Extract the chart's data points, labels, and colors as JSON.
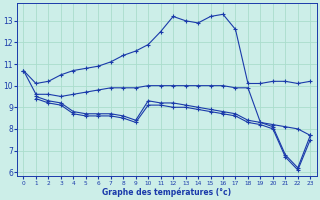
{
  "background_color": "#cceee8",
  "grid_color": "#aaddcc",
  "line_color": "#1a3aaa",
  "xlabel": "Graphe des températures (°c)",
  "xlim": [
    -0.5,
    23.5
  ],
  "ylim": [
    5.8,
    13.8
  ],
  "yticks": [
    6,
    7,
    8,
    9,
    10,
    11,
    12,
    13
  ],
  "xticks": [
    0,
    1,
    2,
    3,
    4,
    5,
    6,
    7,
    8,
    9,
    10,
    11,
    12,
    13,
    14,
    15,
    16,
    17,
    18,
    19,
    20,
    21,
    22,
    23
  ],
  "series": [
    {
      "x": [
        0,
        1,
        2,
        3,
        4,
        5,
        6,
        7,
        8,
        9,
        10,
        11,
        12,
        13,
        14,
        15,
        16,
        17,
        18,
        19,
        20,
        21,
        22,
        23
      ],
      "y": [
        10.7,
        10.1,
        10.2,
        10.5,
        10.7,
        10.8,
        10.9,
        11.1,
        11.4,
        11.6,
        11.9,
        12.5,
        13.2,
        13.0,
        12.9,
        13.2,
        13.3,
        12.6,
        10.1,
        10.1,
        10.2,
        10.2,
        10.1,
        10.2
      ]
    },
    {
      "x": [
        0,
        1,
        2,
        3,
        4,
        5,
        6,
        7,
        8,
        9,
        10,
        11,
        12,
        13,
        14,
        15,
        16,
        17,
        18,
        19,
        20,
        21,
        22,
        23
      ],
      "y": [
        10.7,
        9.6,
        9.6,
        9.5,
        9.6,
        9.7,
        9.8,
        9.9,
        9.9,
        9.9,
        10.0,
        10.0,
        10.0,
        10.0,
        10.0,
        10.0,
        10.0,
        9.9,
        9.9,
        8.3,
        8.2,
        8.1,
        8.0,
        7.7
      ]
    },
    {
      "x": [
        1,
        2,
        3,
        4,
        5,
        6,
        7,
        8,
        9,
        10,
        11,
        12,
        13,
        14,
        15,
        16,
        17,
        18,
        19,
        20,
        21,
        22,
        23
      ],
      "y": [
        9.5,
        9.3,
        9.2,
        8.8,
        8.7,
        8.7,
        8.7,
        8.6,
        8.4,
        9.3,
        9.2,
        9.2,
        9.1,
        9.0,
        8.9,
        8.8,
        8.7,
        8.4,
        8.3,
        8.1,
        6.8,
        6.2,
        7.7
      ]
    },
    {
      "x": [
        1,
        2,
        3,
        4,
        5,
        6,
        7,
        8,
        9,
        10,
        11,
        12,
        13,
        14,
        15,
        16,
        17,
        18,
        19,
        20,
        21,
        22,
        23
      ],
      "y": [
        9.4,
        9.2,
        9.1,
        8.7,
        8.6,
        8.6,
        8.6,
        8.5,
        8.3,
        9.1,
        9.1,
        9.0,
        9.0,
        8.9,
        8.8,
        8.7,
        8.6,
        8.3,
        8.2,
        8.0,
        6.7,
        6.1,
        7.5
      ]
    }
  ]
}
